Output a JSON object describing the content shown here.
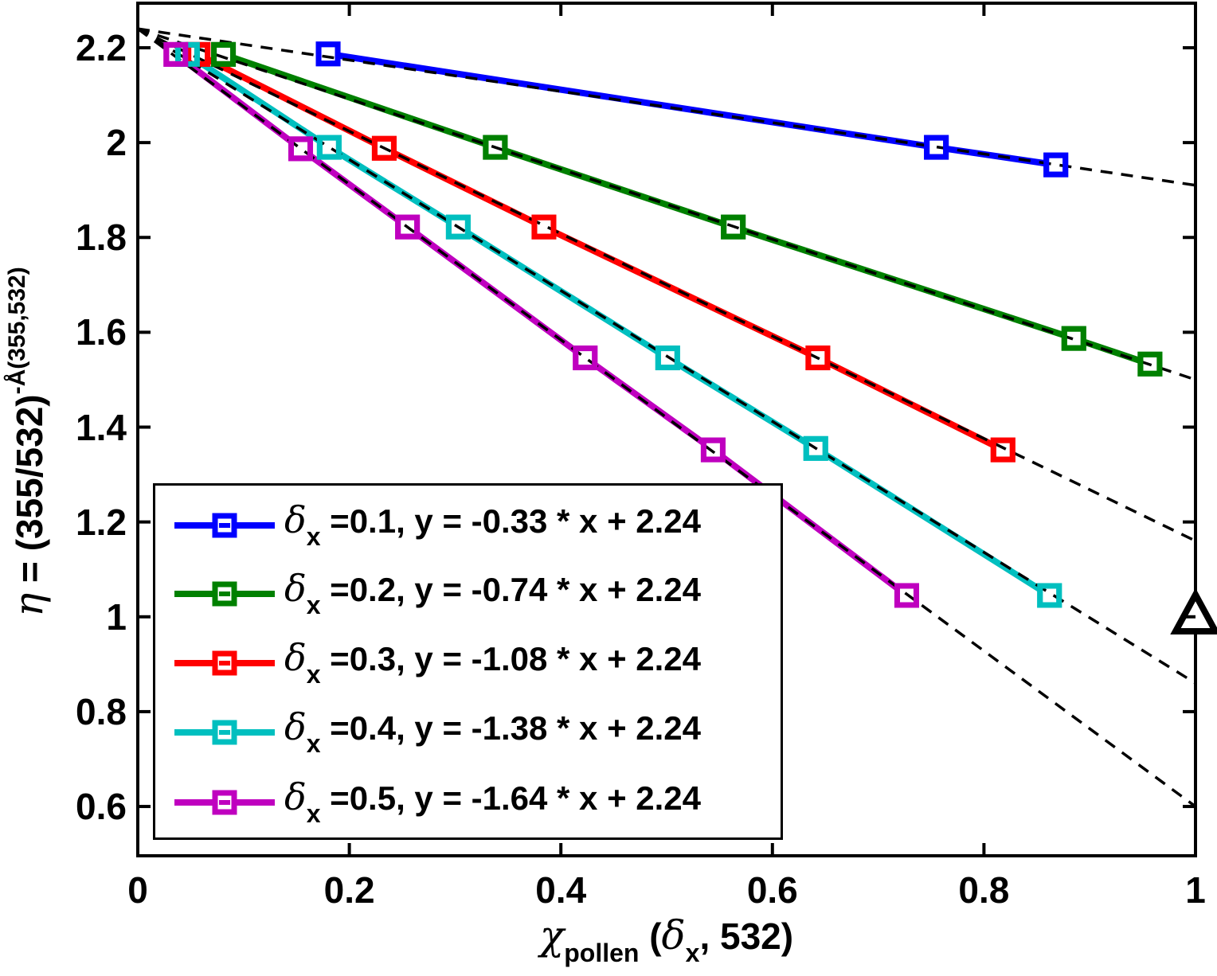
{
  "figure": {
    "background": "#ffffff"
  },
  "chart_data": {
    "type": "line",
    "title": "",
    "xlabel_parts": [
      {
        "t": "χ",
        "style": "greek"
      },
      {
        "t": "pollen",
        "style": "sub"
      },
      {
        "t": " (",
        "style": "normal"
      },
      {
        "t": "δ",
        "style": "greek"
      },
      {
        "t": "x",
        "style": "sub"
      },
      {
        "t": ", 532)",
        "style": "normal"
      }
    ],
    "ylabel_parts": [
      {
        "t": "η",
        "style": "greek"
      },
      {
        "t": " = (355/532)",
        "style": "normal"
      },
      {
        "t": "-Å(355,532)",
        "style": "sup"
      }
    ],
    "x_axis": {
      "min": 0,
      "max": 1,
      "tick_values": [
        0,
        0.2,
        0.4,
        0.6,
        0.8,
        1
      ],
      "ticks": [
        "0",
        "0.2",
        "0.4",
        "0.6",
        "0.8",
        "1"
      ],
      "grid": false
    },
    "y_axis": {
      "min": 0.496,
      "max": 2.294,
      "tick_values": [
        2.2,
        2.0,
        1.8,
        1.6,
        1.4,
        1.2,
        1.0,
        0.8,
        0.6
      ],
      "ticks": [
        "2.2",
        "2",
        "1.8",
        "1.6",
        "1.4",
        "1.2",
        "1",
        "0.8",
        "0.6"
      ],
      "grid": false
    },
    "series": [
      {
        "name": "delta_x = 0.1",
        "color": "#0000FF",
        "slope": -0.33,
        "intercept": 2.24,
        "points": [
          [
            0.18,
            2.187
          ],
          [
            0.755,
            1.99
          ],
          [
            0.868,
            1.953
          ]
        ],
        "legend": {
          "symbol": "δ",
          "sub": "x",
          "label": " =0.1, y = -0.33 * x + 2.24"
        }
      },
      {
        "name": "delta_x = 0.2",
        "color": "#008000",
        "slope": -0.74,
        "intercept": 2.24,
        "points": [
          [
            0.081,
            2.186
          ],
          [
            0.338,
            1.99
          ],
          [
            0.563,
            1.822
          ],
          [
            0.885,
            1.587
          ],
          [
            0.957,
            1.533
          ]
        ],
        "legend": {
          "symbol": "δ",
          "sub": "x",
          "label": " =0.2, y = -0.74 * x + 2.24"
        }
      },
      {
        "name": "delta_x = 0.3",
        "color": "#FF0000",
        "slope": -1.08,
        "intercept": 2.24,
        "points": [
          [
            0.057,
            2.186
          ],
          [
            0.233,
            1.988
          ],
          [
            0.384,
            1.822
          ],
          [
            0.643,
            1.546
          ],
          [
            0.818,
            1.352
          ]
        ],
        "legend": {
          "symbol": "δ",
          "sub": "x",
          "label": " =0.3, y = -1.08 * x + 2.24"
        }
      },
      {
        "name": "delta_x = 0.4",
        "color": "#00BFBF",
        "slope": -1.38,
        "intercept": 2.24,
        "points": [
          [
            0.047,
            2.186
          ],
          [
            0.181,
            1.99
          ],
          [
            0.303,
            1.822
          ],
          [
            0.501,
            1.546
          ],
          [
            0.641,
            1.355
          ],
          [
            0.862,
            1.045
          ]
        ],
        "legend": {
          "symbol": "δ",
          "sub": "x",
          "label": " =0.4, y = -1.38 * x + 2.24"
        }
      },
      {
        "name": "delta_x = 0.5",
        "color": "#BF00BF",
        "slope": -1.64,
        "intercept": 2.24,
        "points": [
          [
            0.036,
            2.186
          ],
          [
            0.154,
            1.987
          ],
          [
            0.255,
            1.822
          ],
          [
            0.423,
            1.546
          ],
          [
            0.544,
            1.352
          ],
          [
            0.727,
            1.045
          ]
        ],
        "legend": {
          "symbol": "δ",
          "sub": "x",
          "label": " =0.5, y = -1.64 * x + 2.24"
        }
      }
    ],
    "fit_lines": {
      "color": "#000000",
      "style": "dashed",
      "x_start": 0,
      "x_end": 1
    },
    "annotation_marker": {
      "shape": "triangle-up",
      "x": 1.0,
      "y": 1.003,
      "color": "#000000",
      "fill": "#ffffff"
    },
    "legend_position": "bottom-left-inside"
  }
}
